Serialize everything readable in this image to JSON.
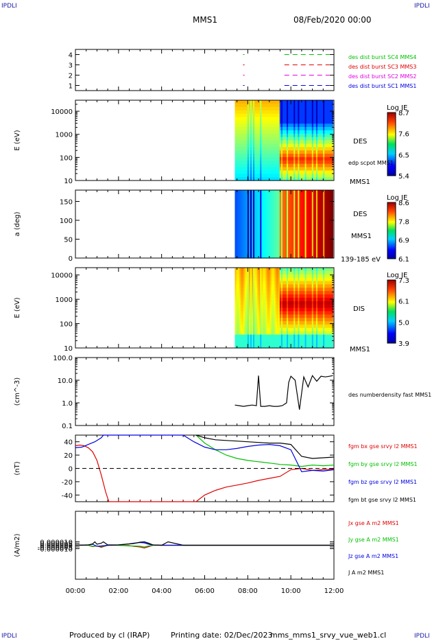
{
  "corner_label": "IPDLI",
  "header": {
    "spacecraft": "MMS1",
    "datetime": "08/Feb/2020 00:00"
  },
  "footer": {
    "producer": "Produced by cl (IRAP)",
    "printing_date": "Printing date: 02/Dec/2023",
    "filename": "mms_mms1_srvy_vue_web1.cl"
  },
  "colors": {
    "frame": "#000000",
    "black": "#000000",
    "red": "#e00000",
    "green": "#00c000",
    "blue": "#0000e0",
    "magenta": "#e000e0",
    "dashed": "#000000"
  },
  "chart_data": [
    {
      "id": "burst",
      "type": "scatter",
      "ylim": [
        0.5,
        4.5
      ],
      "y_ticks": [
        "1",
        "2",
        "3",
        "4"
      ],
      "series": [
        {
          "name": "des dist burst SC1 MMS1",
          "color": "#0000e0",
          "y": 1,
          "segments": [
            [
              7.78,
              7.85
            ],
            [
              9.7,
              11.8
            ]
          ]
        },
        {
          "name": "des dist burst SC2 MMS2",
          "color": "#e000e0",
          "y": 2,
          "segments": [
            [
              7.78,
              7.85
            ],
            [
              9.7,
              11.8
            ]
          ]
        },
        {
          "name": "des dist burst SC3 MMS3",
          "color": "#e00000",
          "y": 3,
          "segments": [
            [
              7.78,
              7.85
            ],
            [
              9.7,
              11.8
            ]
          ]
        },
        {
          "name": "des dist burst SC4 MMS4",
          "color": "#00c000",
          "y": 4,
          "segments": [
            [
              7.78,
              7.85
            ],
            [
              9.7,
              11.8
            ]
          ]
        }
      ]
    },
    {
      "id": "des_energy",
      "type": "heatmap",
      "ylabel": "E (eV)",
      "yscale": "log",
      "ylim": [
        10,
        30000
      ],
      "y_ticks": [
        "10",
        "100",
        "1000",
        "10000"
      ],
      "data_start": 7.4,
      "data_end": 11.95,
      "right_label": "DES",
      "overlay_label": "edp scpot MMS1",
      "sat_label": "MMS1",
      "colorbar": {
        "title": "Log JE",
        "ticks": [
          "8.7",
          "7.6",
          "6.5",
          "5.4"
        ]
      }
    },
    {
      "id": "des_pitch",
      "type": "heatmap",
      "ylabel": "a (deg)",
      "ylim": [
        0,
        180
      ],
      "y_ticks": [
        "0",
        "50",
        "100",
        "150"
      ],
      "data_start": 7.4,
      "data_end": 11.95,
      "right_label": "DES",
      "sat_label": "MMS1",
      "energy_label": "139-185 eV",
      "colorbar": {
        "title": "Log JE",
        "ticks": [
          "8.6",
          "7.8",
          "6.9",
          "6.1"
        ]
      }
    },
    {
      "id": "dis_energy",
      "type": "heatmap",
      "ylabel": "E (eV)",
      "yscale": "log",
      "ylim": [
        10,
        20000
      ],
      "y_ticks": [
        "10",
        "100",
        "1000",
        "10000"
      ],
      "data_start": 7.4,
      "data_end": 11.95,
      "right_label": "DIS",
      "sat_label": "MMS1",
      "colorbar": {
        "title": "Log JE",
        "ticks": [
          "7.3",
          "6.1",
          "5.0",
          "3.9"
        ]
      }
    },
    {
      "id": "density",
      "type": "line",
      "ylabel": "(cm^-3)",
      "yscale": "log",
      "ylim": [
        0.1,
        100
      ],
      "y_ticks": [
        "0.1",
        "1.0",
        "10.0",
        "100.0"
      ],
      "series": [
        {
          "name": "des numberdensity fast MMS1",
          "color": "#000000",
          "x": [
            7.4,
            7.6,
            7.8,
            8.0,
            8.2,
            8.4,
            8.5,
            8.6,
            8.8,
            9.0,
            9.2,
            9.4,
            9.6,
            9.8,
            9.9,
            10.0,
            10.2,
            10.4,
            10.6,
            10.8,
            11.0,
            11.2,
            11.4,
            11.6,
            11.8,
            11.95
          ],
          "y": [
            0.8,
            0.75,
            0.7,
            0.75,
            0.8,
            0.75,
            16,
            0.7,
            0.7,
            0.75,
            0.7,
            0.7,
            0.75,
            1.0,
            8,
            15,
            10,
            0.5,
            14,
            5,
            16,
            9,
            15,
            14,
            15,
            16
          ]
        }
      ]
    },
    {
      "id": "fgm",
      "type": "line",
      "ylabel": "(nT)",
      "ylim": [
        -50,
        50
      ],
      "y_ticks": [
        "-40",
        "-20",
        "0",
        "20",
        "40"
      ],
      "series": [
        {
          "name": "fgm bx gse srvy l2 MMS1",
          "color": "#e00000",
          "x": [
            0.0,
            0.2,
            0.4,
            0.6,
            0.8,
            1.0,
            1.2,
            1.4,
            1.55,
            5.6,
            6.0,
            6.5,
            7.0,
            7.5,
            8.0,
            8.5,
            9.0,
            9.5,
            10.0,
            10.5,
            11.0,
            11.5,
            12.0
          ],
          "y": [
            34,
            35,
            34,
            31,
            25,
            12,
            -10,
            -35,
            -50,
            -50,
            -40,
            -33,
            -28,
            -25,
            -22,
            -18,
            -15,
            -12,
            -2,
            0,
            -3,
            -2,
            -1
          ]
        },
        {
          "name": "fgm by gse srvy l2 MMS1",
          "color": "#00c000",
          "x": [
            5.6,
            6.0,
            6.5,
            7.0,
            7.5,
            8.0,
            8.5,
            9.0,
            9.5,
            10.0,
            10.5,
            11.0,
            11.5,
            12.0
          ],
          "y": [
            50,
            38,
            28,
            20,
            15,
            12,
            10,
            8,
            6,
            5,
            3,
            5,
            4,
            5
          ]
        },
        {
          "name": "fgm bz gse srvy l2 MMS1",
          "color": "#0000e0",
          "x": [
            0.0,
            0.3,
            0.6,
            0.9,
            1.2,
            1.3,
            5.0,
            5.5,
            6.0,
            6.5,
            7.0,
            7.5,
            8.0,
            8.5,
            9.0,
            9.5,
            10.0,
            10.5,
            11.0,
            11.5,
            12.0
          ],
          "y": [
            31,
            32,
            36,
            40,
            46,
            50,
            50,
            40,
            32,
            28,
            28,
            30,
            33,
            35,
            36,
            34,
            28,
            -5,
            -3,
            -4,
            -2
          ]
        },
        {
          "name": "fgm bt gse srvy l2 MMS1",
          "color": "#000000",
          "x": [
            5.6,
            6.0,
            6.5,
            7.0,
            7.5,
            8.0,
            8.5,
            9.0,
            9.5,
            10.0,
            10.5,
            11.0,
            11.5,
            12.0
          ],
          "y": [
            50,
            46,
            43,
            42,
            41,
            40,
            39,
            38,
            38,
            36,
            18,
            15,
            16,
            17
          ]
        }
      ]
    },
    {
      "id": "current",
      "type": "line",
      "ylabel": "(A/m2)",
      "ylim": [
        -0.0001,
        0.0001
      ],
      "y_ticks": [
        "-0.000010",
        "-0.000005",
        "0.000000",
        "0.000005",
        "0.000010"
      ],
      "series": [
        {
          "name": "Jx gse A m2 MMS1",
          "color": "#e00000",
          "x": [
            0.0,
            0.6,
            0.8,
            1.0,
            1.2,
            1.5,
            2.0,
            2.5,
            2.7,
            3.0,
            3.2,
            3.4,
            3.6,
            4.0,
            5.0,
            12.0
          ],
          "y": [
            0,
            0,
            -4e-06,
            -2e-06,
            -6e-06,
            0,
            0,
            -1e-06,
            -3e-06,
            -5e-06,
            -8e-06,
            -4e-06,
            0,
            0,
            0,
            0
          ]
        },
        {
          "name": "Jy gse A m2 MMS1",
          "color": "#00c000",
          "x": [
            0.0,
            0.6,
            0.8,
            1.0,
            1.2,
            1.5,
            2.0,
            2.5,
            2.7,
            3.0,
            3.2,
            3.4,
            3.6,
            4.0,
            5.0,
            12.0
          ],
          "y": [
            0,
            0,
            -3e-06,
            -2e-06,
            -4e-06,
            0,
            0,
            -2e-06,
            -2e-06,
            -3e-06,
            -5e-06,
            -2e-06,
            0,
            0,
            0,
            0
          ]
        },
        {
          "name": "Jz gse A m2 MMS1",
          "color": "#0000e0",
          "x": [
            0.0,
            0.6,
            0.8,
            1.0,
            1.2,
            1.5,
            2.0,
            2.5,
            2.7,
            3.0,
            3.2,
            3.4,
            3.6,
            4.0,
            5.0,
            12.0
          ],
          "y": [
            0,
            1e-06,
            3e-06,
            -3e-06,
            -2e-06,
            0,
            1e-06,
            4e-06,
            6e-06,
            8e-06,
            7e-06,
            3e-06,
            1e-06,
            0,
            0,
            0
          ]
        },
        {
          "name": "J A m2 MMS1",
          "color": "#000000",
          "x": [
            0.0,
            0.6,
            0.8,
            0.9,
            1.0,
            1.2,
            1.3,
            1.5,
            2.0,
            2.5,
            2.7,
            3.0,
            3.2,
            3.4,
            3.6,
            4.0,
            4.3,
            5.0,
            12.0
          ],
          "y": [
            0,
            1e-06,
            4e-06,
            1e-05,
            3e-06,
            6e-06,
            1e-05,
            1e-06,
            1e-06,
            4e-06,
            5e-06,
            9e-06,
            1e-05,
            6e-06,
            1e-06,
            0,
            1e-05,
            0,
            0
          ]
        }
      ]
    }
  ],
  "x_axis": {
    "range_hours": [
      0,
      12
    ],
    "tick_labels": [
      "00:00",
      "02:00",
      "04:00",
      "06:00",
      "08:00",
      "10:00",
      "12:00"
    ]
  }
}
